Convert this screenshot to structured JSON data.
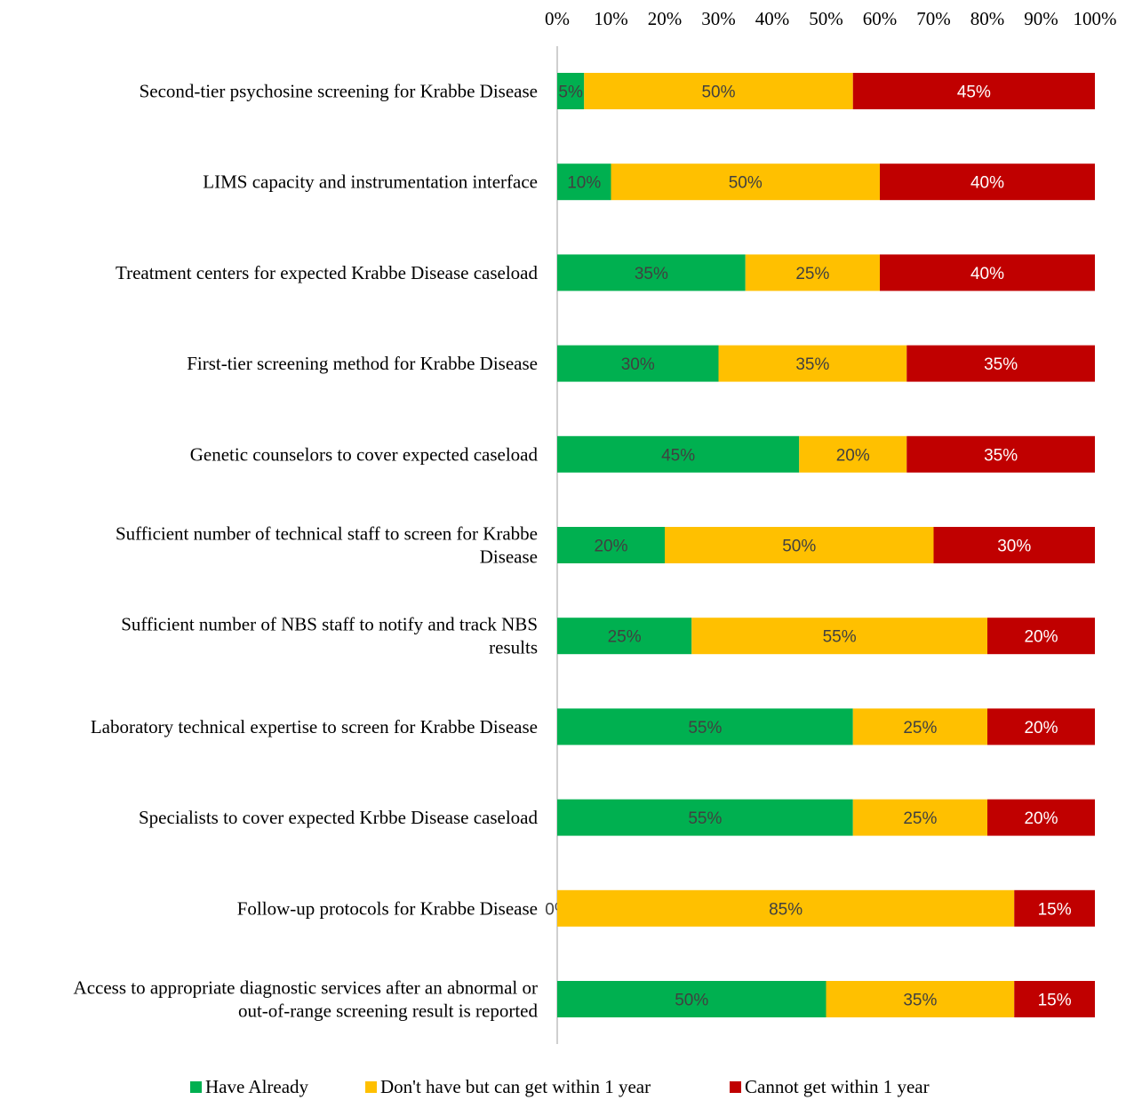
{
  "chart_data": {
    "type": "bar",
    "orientation": "horizontal",
    "stacked": true,
    "categories": [
      [
        "Second-tier psychosine screening for Krabbe Disease"
      ],
      [
        "LIMS capacity and instrumentation interface"
      ],
      [
        "Treatment centers for expected Krabbe Disease caseload"
      ],
      [
        "First-tier screening method for Krabbe Disease"
      ],
      [
        "Genetic counselors to cover expected caseload"
      ],
      [
        "Sufficient number of technical staff to screen for Krabbe",
        "Disease"
      ],
      [
        "Sufficient number of NBS staff to notify and track NBS",
        "results"
      ],
      [
        "Laboratory technical expertise to screen for Krabbe Disease"
      ],
      [
        "Specialists to cover expected Krbbe Disease caseload"
      ],
      [
        "Follow-up protocols for Krabbe Disease"
      ],
      [
        "Access to appropriate diagnostic services after an abnormal or",
        "out-of-range screening result is reported"
      ]
    ],
    "series": [
      {
        "name": "Have Already",
        "color": "#00B050",
        "label_color": "#404040",
        "values": [
          5,
          10,
          35,
          30,
          45,
          20,
          25,
          55,
          55,
          0,
          50
        ]
      },
      {
        "name": "Don't have but can get within 1 year",
        "color": "#FFC000",
        "label_color": "#404040",
        "values": [
          50,
          50,
          25,
          35,
          20,
          50,
          55,
          25,
          25,
          85,
          35
        ]
      },
      {
        "name": "Cannot get within 1 year",
        "color": "#C00000",
        "label_color": "#ffffff",
        "values": [
          45,
          40,
          40,
          35,
          35,
          30,
          20,
          20,
          20,
          15,
          15
        ]
      }
    ],
    "xlim": [
      0,
      100
    ],
    "x_ticks": [
      "0%",
      "10%",
      "20%",
      "30%",
      "40%",
      "50%",
      "60%",
      "70%",
      "80%",
      "90%",
      "100%"
    ],
    "value_suffix": "%",
    "axis_position": "top",
    "legend_position": "bottom",
    "grid": false
  }
}
